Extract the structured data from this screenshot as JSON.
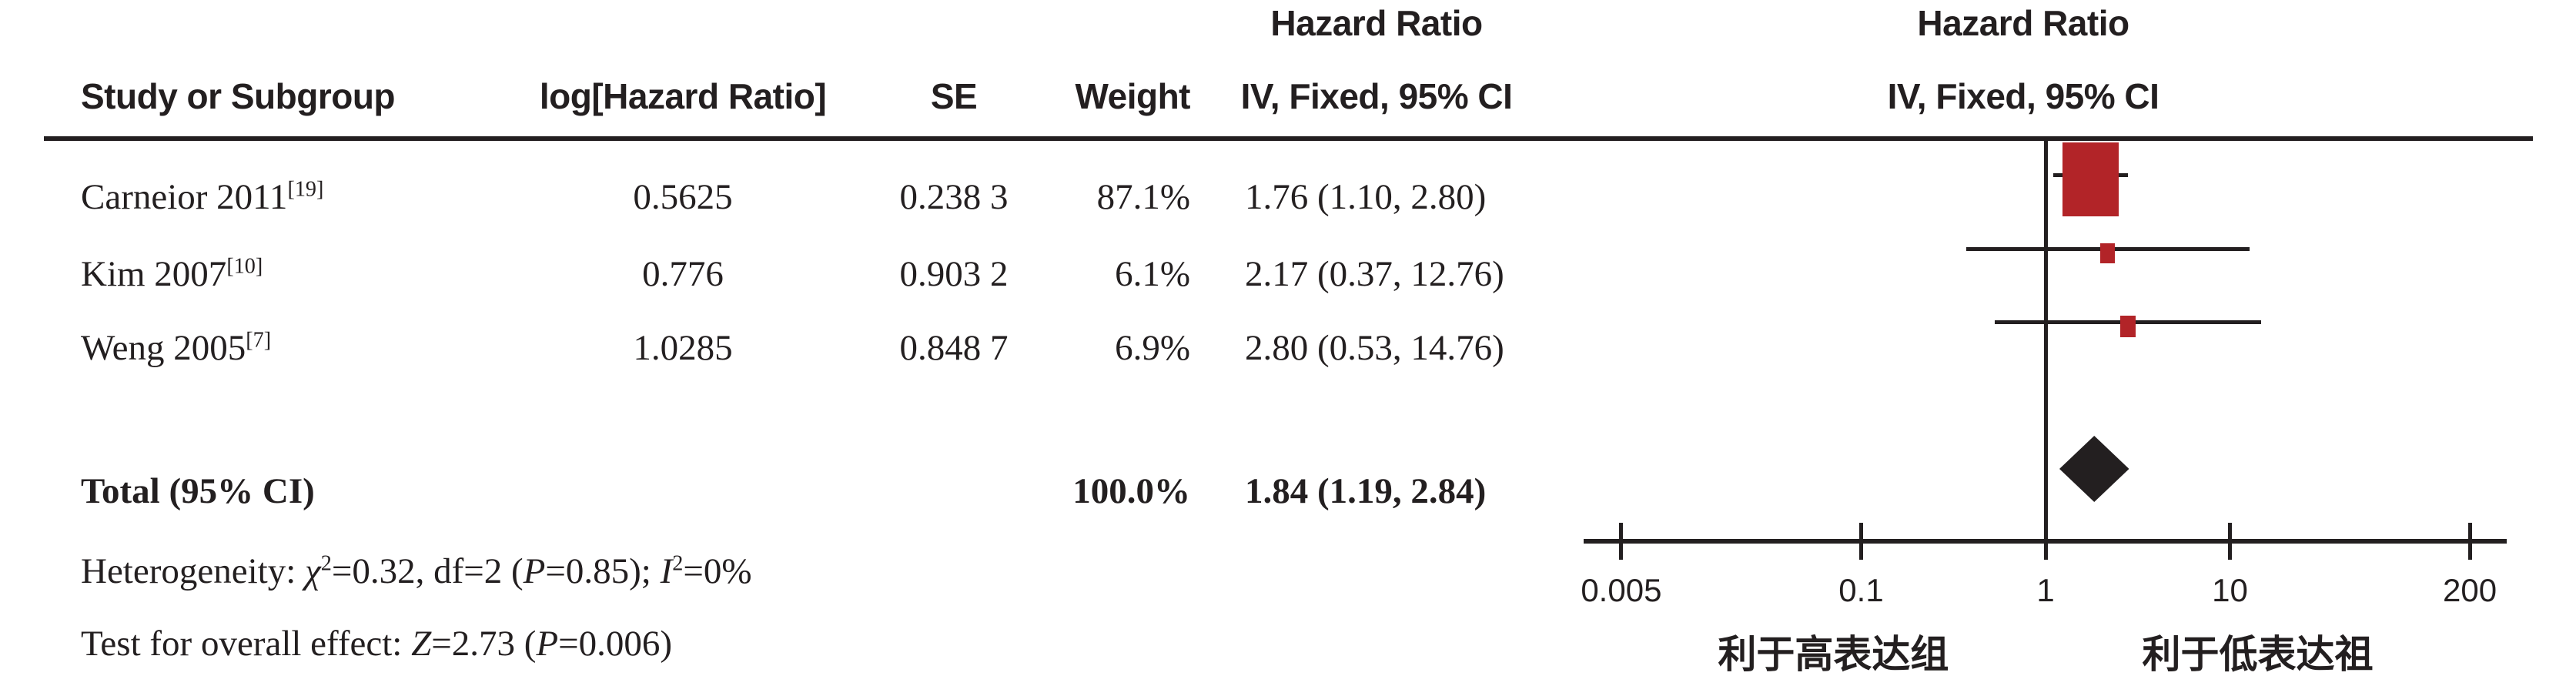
{
  "table": {
    "headers": {
      "hr_left_line1": "Hazard Ratio",
      "hr_left_line2": "IV, Fixed, 95% CI",
      "study": "Study or Subgroup",
      "log_hr": "log[Hazard Ratio]",
      "se": "SE",
      "weight": "Weight",
      "hr_right_line1": "Hazard Ratio",
      "hr_right_line2": "IV, Fixed, 95% CI"
    },
    "rows": [
      {
        "study": "Carneior 2011",
        "ref": "[19]",
        "log_hr": "0.5625",
        "se": "0.238 3",
        "weight": "87.1%",
        "ci": "1.76 (1.10, 2.80)"
      },
      {
        "study": "Kim 2007",
        "ref": "[10]",
        "log_hr": "0.776",
        "se": "0.903 2",
        "weight": "6.1%",
        "ci": "2.17 (0.37, 12.76)"
      },
      {
        "study": "Weng 2005",
        "ref": "[7]",
        "log_hr": "1.0285",
        "se": "0.848 7",
        "weight": "6.9%",
        "ci": "2.80 (0.53, 14.76)"
      }
    ],
    "total": {
      "label": "Total (95% CI)",
      "weight": "100.0%",
      "ci": "1.84 (1.19, 2.84)"
    },
    "footnotes": {
      "heterogeneity_segments": [
        {
          "t": "Heterogeneity: "
        },
        {
          "t": "χ",
          "i": true
        },
        {
          "t": "2",
          "sup": true
        },
        {
          "t": "=0.32, df=2 ("
        },
        {
          "t": "P",
          "i": true
        },
        {
          "t": "=0.85); "
        },
        {
          "t": "I",
          "i": true
        },
        {
          "t": "2",
          "sup": true
        },
        {
          "t": "=0%"
        }
      ],
      "overall_effect_segments": [
        {
          "t": "Test for overall effect: "
        },
        {
          "t": "Z",
          "i": true
        },
        {
          "t": "=2.73 ("
        },
        {
          "t": "P",
          "i": true
        },
        {
          "t": "=0.006)"
        }
      ]
    }
  },
  "chart_data": {
    "type": "forest",
    "scale": "log10",
    "effect_measure": "Hazard Ratio",
    "model": "IV, Fixed, 95% CI",
    "axis_ticks": [
      0.005,
      0.1,
      1,
      10,
      200
    ],
    "axis_tick_labels": [
      "0.005",
      "0.1",
      "1",
      "10",
      "200"
    ],
    "axis_range": [
      0.005,
      200
    ],
    "null_value": 1,
    "studies": [
      {
        "name": "Carneior 2011",
        "log_hr": 0.5625,
        "se": 0.2383,
        "hr": 1.76,
        "ci_low": 1.1,
        "ci_high": 2.8,
        "weight_pct": 87.1
      },
      {
        "name": "Kim 2007",
        "log_hr": 0.776,
        "se": 0.9032,
        "hr": 2.17,
        "ci_low": 0.37,
        "ci_high": 12.76,
        "weight_pct": 6.1
      },
      {
        "name": "Weng 2005",
        "log_hr": 1.0285,
        "se": 0.8487,
        "hr": 2.8,
        "ci_low": 0.53,
        "ci_high": 14.76,
        "weight_pct": 6.9
      }
    ],
    "total": {
      "hr": 1.84,
      "ci_low": 1.19,
      "ci_high": 2.84,
      "weight_pct": 100.0
    },
    "heterogeneity": {
      "chi2": 0.32,
      "df": 2,
      "p": 0.85,
      "i2_pct": 0
    },
    "overall_effect": {
      "z": 2.73,
      "p": 0.006
    },
    "xlabel_left": "利于高表达组",
    "xlabel_right": "利于低表达祖",
    "legend_position": "none",
    "grid": false
  },
  "colors": {
    "marker_red": "#b22428",
    "ink": "#231f20"
  }
}
